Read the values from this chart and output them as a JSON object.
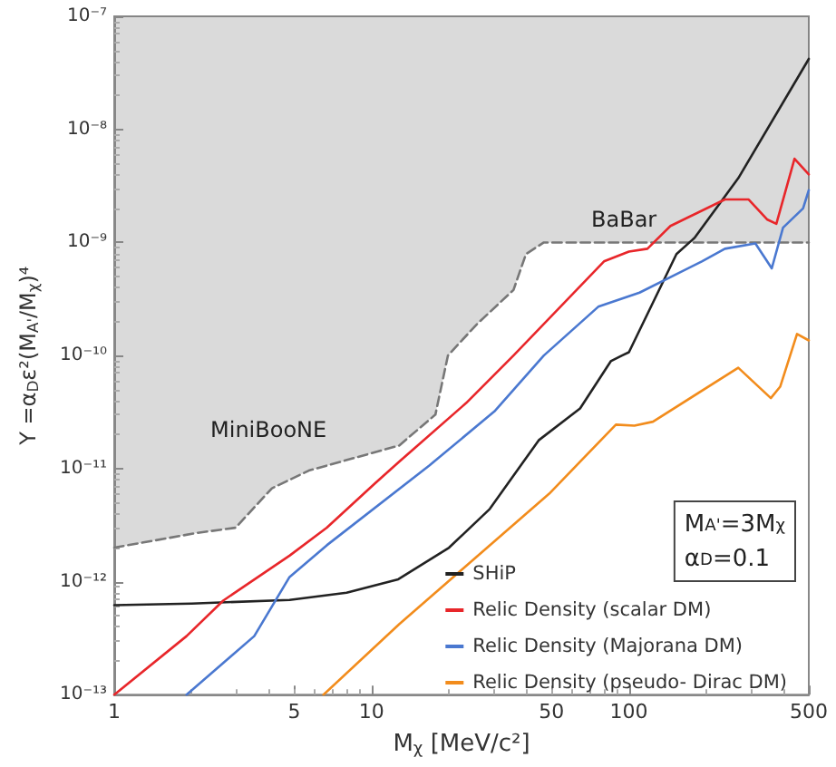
{
  "chart_data": {
    "type": "line",
    "xlabel": "M$_{χ}$ [MeV/c²]",
    "ylabel": "Y =α$_{D}$ε²(M$_{A'}$/M$_{χ}$)⁴",
    "log": "xy",
    "xlim": [
      1,
      500
    ],
    "xticks": [
      1,
      5,
      10,
      50,
      100,
      500
    ],
    "ylim": [
      1e-13,
      1e-07
    ],
    "yticks": [
      {
        "value": 1e-13,
        "label": "10⁻¹³"
      },
      {
        "value": 1e-12,
        "label": "10⁻¹²"
      },
      {
        "value": 1e-11,
        "label": "10⁻¹¹"
      },
      {
        "value": 1e-10,
        "label": "10⁻¹⁰"
      },
      {
        "value": 1e-09,
        "label": "10⁻⁹"
      },
      {
        "value": 1e-08,
        "label": "10⁻⁸"
      },
      {
        "value": 1e-07,
        "label": "10⁻⁷"
      }
    ],
    "grid": false,
    "legend": "bottom right",
    "series": [
      {
        "type": "line",
        "color": "#777777",
        "line_style": "dashed",
        "x": [
          1,
          2.1,
          2.96,
          4.1,
          5.7,
          9.2,
          12.8,
          17.7,
          19.8,
          25.7,
          35.6,
          39.8,
          46.7,
          500
        ],
        "values": [
          2e-12,
          2.7e-12,
          3e-12,
          6.7e-12,
          9.6e-12,
          1.3e-11,
          1.6e-11,
          3e-11,
          1e-10,
          1.9e-10,
          3.8e-10,
          7.9e-10,
          1e-09,
          1e-09
        ],
        "lower": [
          2e-12,
          2.7e-12,
          3e-12,
          6.7e-12,
          9.6e-12,
          1.3e-11,
          1.6e-11,
          3e-11,
          1e-10,
          1.9e-10,
          3.8e-10,
          7.9e-10,
          1e-09,
          1e-09
        ],
        "upper": [
          1e-07,
          1e-07,
          1e-07,
          1e-07,
          1e-07,
          1e-07,
          1e-07,
          1e-07,
          1e-07,
          1e-07,
          1e-07,
          1e-07,
          1e-07,
          1e-07
        ]
      },
      {
        "name": "SHiP",
        "color": "#222222",
        "x": [
          1,
          2,
          4.8,
          8,
          12.7,
          20,
          28.8,
          44.6,
          64.6,
          85,
          94,
          100,
          153,
          180,
          266,
          500
        ],
        "values": [
          6.2e-13,
          6.4e-13,
          6.9e-13,
          8e-13,
          1.05e-12,
          2e-12,
          4.4e-12,
          1.78e-11,
          3.4e-11,
          8.9e-11,
          1e-10,
          1.07e-10,
          7.9e-10,
          1.1e-09,
          3.7e-09,
          4.2e-08
        ]
      },
      {
        "name": "Relic Density (scalar DM)",
        "color": "#e8262a",
        "x": [
          1,
          1.91,
          2.65,
          4.8,
          6.7,
          10.3,
          12.8,
          23.3,
          35.6,
          80,
          100,
          118,
          145,
          236,
          292,
          344,
          374,
          440,
          500
        ],
        "values": [
          1e-13,
          3.3e-13,
          6.8e-13,
          1.7e-12,
          3e-12,
          7.4e-12,
          1.15e-11,
          3.8e-11,
          1e-10,
          6.8e-10,
          8.3e-10,
          8.8e-10,
          1.4e-09,
          2.4e-09,
          2.4e-09,
          1.6e-09,
          1.46e-09,
          5.5e-09,
          4e-09
        ]
      },
      {
        "name": "Relic Density (Majorana DM)",
        "color": "#4a78d0",
        "x": [
          1.91,
          3.5,
          4.8,
          6.7,
          16.8,
          30,
          46.7,
          76,
          110,
          192,
          236,
          310,
          359,
          397,
          475,
          500
        ],
        "values": [
          1e-13,
          3.3e-13,
          1.1e-12,
          2.1e-12,
          1.07e-11,
          3.2e-11,
          1e-10,
          2.7e-10,
          3.6e-10,
          6.8e-10,
          8.8e-10,
          9.8e-10,
          5.9e-10,
          1.35e-09,
          2e-09,
          2.9e-09
        ]
      },
      {
        "name": "Relic Density (pseudo- Dirac DM)",
        "color": "#f28c1c",
        "x": [
          6.5,
          12.8,
          49,
          89,
          105,
          124,
          266,
          356,
          387,
          450,
          500
        ],
        "values": [
          1e-13,
          4.2e-13,
          6e-12,
          2.45e-11,
          2.4e-11,
          2.6e-11,
          7.8e-11,
          4.2e-11,
          5.3e-11,
          1.55e-10,
          1.36e-10
        ]
      }
    ],
    "annotations": [
      "MiniBooNE",
      "BaBar",
      "M$_{A'}$=3M$_{χ}$",
      "α$_{D}$=0.1"
    ]
  }
}
